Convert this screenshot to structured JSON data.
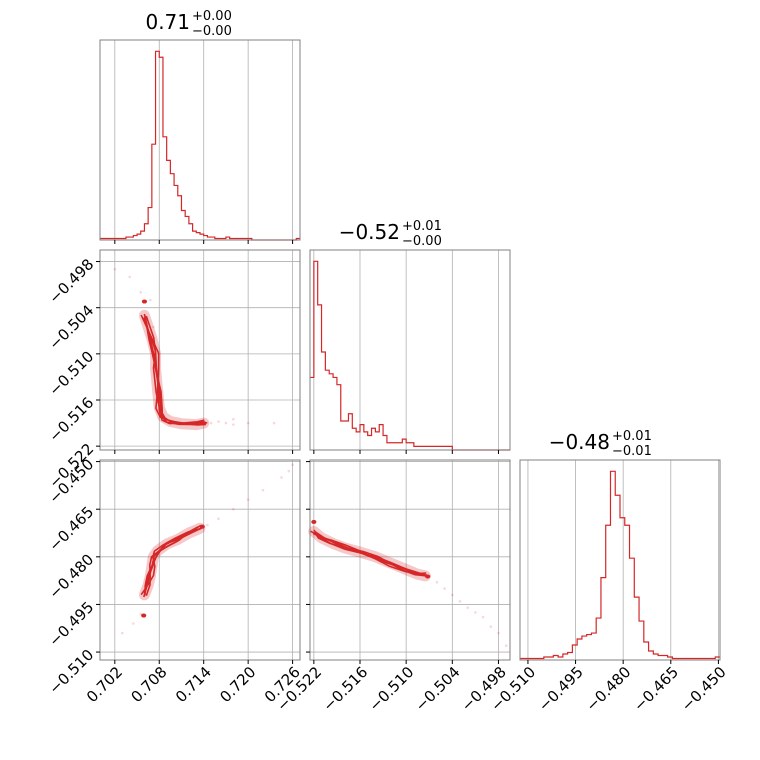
{
  "colors": {
    "accent": "#d62728",
    "grid": "#b0b0b0",
    "frame": "#808080"
  },
  "chart_data": {
    "type": "corner",
    "grid": true,
    "params": [
      {
        "title_value": "0.71",
        "title_plus": "+0.00",
        "title_minus": "−0.00",
        "range": [
          0.7,
          0.727
        ]
      },
      {
        "title_value": "−0.52",
        "title_plus": "+0.01",
        "title_minus": "−0.00",
        "range": [
          -0.5225,
          -0.4965
        ]
      },
      {
        "title_value": "−0.48",
        "title_plus": "+0.01",
        "title_minus": "−0.01",
        "range": [
          -0.5125,
          -0.4495
        ]
      }
    ],
    "ticks": [
      {
        "values": [
          0.702,
          0.708,
          0.714,
          0.72,
          0.726
        ],
        "labels": [
          "0.702",
          "0.708",
          "0.714",
          "0.720",
          "0.726"
        ]
      },
      {
        "values": [
          -0.522,
          -0.516,
          -0.51,
          -0.504,
          -0.498
        ],
        "labels": [
          "−0.522",
          "−0.516",
          "−0.510",
          "−0.504",
          "−0.498"
        ]
      },
      {
        "values": [
          -0.51,
          -0.495,
          -0.48,
          -0.465,
          -0.45
        ],
        "labels": [
          "−0.510",
          "−0.495",
          "−0.480",
          "−0.465",
          "−0.450"
        ]
      }
    ],
    "histograms": [
      {
        "bin_edges": [
          0.7,
          0.7005,
          0.701,
          0.7015,
          0.702,
          0.7025,
          0.703,
          0.7035,
          0.704,
          0.7045,
          0.705,
          0.7055,
          0.706,
          0.7065,
          0.707,
          0.7075,
          0.708,
          0.7085,
          0.709,
          0.7095,
          0.71,
          0.7105,
          0.711,
          0.7115,
          0.712,
          0.7125,
          0.713,
          0.7135,
          0.714,
          0.7145,
          0.715,
          0.7155,
          0.716,
          0.7165,
          0.717,
          0.7175,
          0.718,
          0.7185,
          0.719,
          0.7195,
          0.72,
          0.7205,
          0.721,
          0.7215,
          0.722,
          0.7225,
          0.723,
          0.7235,
          0.724,
          0.7245,
          0.725,
          0.7255,
          0.726,
          0.7265,
          0.727
        ],
        "counts": [
          1,
          1,
          1,
          1,
          1,
          1,
          1,
          2,
          2,
          3,
          4,
          6,
          11,
          22,
          65,
          128,
          124,
          70,
          54,
          45,
          37,
          30,
          20,
          16,
          11,
          6,
          5,
          4,
          3,
          2,
          2,
          1,
          1,
          1,
          2,
          1,
          1,
          1,
          1,
          1,
          1,
          0,
          0,
          0,
          0,
          0,
          0,
          0,
          0,
          0,
          0,
          0,
          0,
          1
        ]
      },
      {
        "bin_edges": [
          -0.5225,
          -0.522,
          -0.5215,
          -0.521,
          -0.5205,
          -0.52,
          -0.5195,
          -0.519,
          -0.5185,
          -0.518,
          -0.5175,
          -0.517,
          -0.5165,
          -0.516,
          -0.5155,
          -0.515,
          -0.5145,
          -0.514,
          -0.5135,
          -0.513,
          -0.5125,
          -0.512,
          -0.5115,
          -0.511,
          -0.5105,
          -0.51,
          -0.5095,
          -0.509,
          -0.5085,
          -0.508,
          -0.5075,
          -0.507,
          -0.5065,
          -0.506,
          -0.5055,
          -0.505,
          -0.5045,
          -0.504,
          -0.5035,
          -0.503,
          -0.5025,
          -0.502,
          -0.5015,
          -0.501,
          -0.5005,
          -0.5,
          -0.4995,
          -0.499,
          -0.4985,
          -0.498,
          -0.4975,
          -0.497,
          -0.4965
        ],
        "counts": [
          20,
          52,
          40,
          27,
          22,
          21,
          20,
          18,
          8,
          8,
          10,
          6,
          5,
          7,
          5,
          4,
          6,
          5,
          7,
          4,
          2,
          2,
          2,
          2,
          3,
          2,
          2,
          1,
          1,
          1,
          1,
          1,
          1,
          1,
          1,
          1,
          1,
          0,
          0,
          0,
          0,
          0,
          0,
          0,
          0,
          0,
          0,
          0,
          0,
          0,
          0,
          0
        ]
      },
      {
        "bin_edges": [
          -0.5125,
          -0.511,
          -0.5095,
          -0.508,
          -0.5065,
          -0.505,
          -0.5035,
          -0.502,
          -0.5005,
          -0.499,
          -0.4975,
          -0.496,
          -0.4945,
          -0.493,
          -0.4915,
          -0.49,
          -0.4885,
          -0.487,
          -0.4855,
          -0.484,
          -0.4825,
          -0.481,
          -0.4795,
          -0.478,
          -0.4765,
          -0.475,
          -0.4735,
          -0.472,
          -0.4705,
          -0.469,
          -0.4675,
          -0.466,
          -0.4645,
          -0.463,
          -0.4615,
          -0.46,
          -0.4585,
          -0.457,
          -0.4555,
          -0.454,
          -0.4525,
          -0.451,
          -0.4495
        ],
        "counts": [
          1,
          1,
          1,
          1,
          1,
          2,
          2,
          3,
          2,
          4,
          5,
          10,
          14,
          16,
          17,
          18,
          28,
          55,
          90,
          126,
          110,
          95,
          90,
          68,
          42,
          26,
          12,
          6,
          4,
          3,
          3,
          2,
          1,
          1,
          1,
          1,
          1,
          1,
          1,
          1,
          1,
          2
        ]
      }
    ],
    "panels_2d": [
      {
        "x_param": 0,
        "y_param": 1,
        "ridge": [
          [
            0.706,
            -0.505
          ],
          [
            0.707,
            -0.508
          ],
          [
            0.7075,
            -0.51
          ],
          [
            0.7075,
            -0.512
          ],
          [
            0.7078,
            -0.515
          ],
          [
            0.708,
            -0.517
          ],
          [
            0.7085,
            -0.5182
          ],
          [
            0.7095,
            -0.5188
          ],
          [
            0.711,
            -0.5191
          ],
          [
            0.713,
            -0.5192
          ],
          [
            0.714,
            -0.519
          ]
        ],
        "scatter": [
          [
            0.702,
            -0.499
          ],
          [
            0.704,
            -0.5
          ],
          [
            0.7055,
            -0.502
          ],
          [
            0.7065,
            -0.506
          ],
          [
            0.7068,
            -0.503
          ],
          [
            0.7072,
            -0.5065
          ],
          [
            0.715,
            -0.519
          ],
          [
            0.716,
            -0.5188
          ],
          [
            0.717,
            -0.519
          ],
          [
            0.718,
            -0.5185
          ],
          [
            0.72,
            -0.519
          ],
          [
            0.7235,
            -0.519
          ],
          [
            0.718,
            -0.5192
          ]
        ],
        "hot_points": [
          [
            0.706,
            -0.5032
          ],
          [
            0.714,
            -0.519
          ]
        ]
      },
      {
        "x_param": 0,
        "y_param": 2,
        "ridge": [
          [
            0.706,
            -0.492
          ],
          [
            0.7065,
            -0.489
          ],
          [
            0.7068,
            -0.486
          ],
          [
            0.707,
            -0.483
          ],
          [
            0.7072,
            -0.48
          ],
          [
            0.7078,
            -0.478
          ],
          [
            0.709,
            -0.476
          ],
          [
            0.7105,
            -0.4745
          ],
          [
            0.712,
            -0.4725
          ],
          [
            0.7135,
            -0.471
          ]
        ],
        "scatter": [
          [
            0.703,
            -0.504
          ],
          [
            0.7045,
            -0.501
          ],
          [
            0.7055,
            -0.498
          ],
          [
            0.7145,
            -0.47
          ],
          [
            0.716,
            -0.468
          ],
          [
            0.718,
            -0.465
          ],
          [
            0.72,
            -0.462
          ],
          [
            0.722,
            -0.459
          ],
          [
            0.7245,
            -0.455
          ],
          [
            0.7255,
            -0.453
          ],
          [
            0.726,
            -0.451
          ]
        ],
        "hot_points": [
          [
            0.7059,
            -0.4985
          ],
          [
            0.7138,
            -0.4705
          ]
        ]
      },
      {
        "x_param": 1,
        "y_param": 2,
        "ridge": [
          [
            -0.522,
            -0.472
          ],
          [
            -0.521,
            -0.474
          ],
          [
            -0.5195,
            -0.4758
          ],
          [
            -0.518,
            -0.4772
          ],
          [
            -0.516,
            -0.4785
          ],
          [
            -0.514,
            -0.48
          ],
          [
            -0.512,
            -0.482
          ],
          [
            -0.51,
            -0.484
          ],
          [
            -0.5085,
            -0.4855
          ],
          [
            -0.5075,
            -0.486
          ]
        ],
        "scatter": [
          [
            -0.506,
            -0.488
          ],
          [
            -0.505,
            -0.49
          ],
          [
            -0.504,
            -0.492
          ],
          [
            -0.503,
            -0.494
          ],
          [
            -0.502,
            -0.496
          ],
          [
            -0.501,
            -0.4975
          ],
          [
            -0.5,
            -0.499
          ],
          [
            -0.499,
            -0.502
          ],
          [
            -0.498,
            -0.504
          ],
          [
            -0.497,
            -0.508
          ]
        ],
        "hot_points": [
          [
            -0.522,
            -0.469
          ],
          [
            -0.5072,
            -0.4862
          ]
        ]
      }
    ]
  }
}
